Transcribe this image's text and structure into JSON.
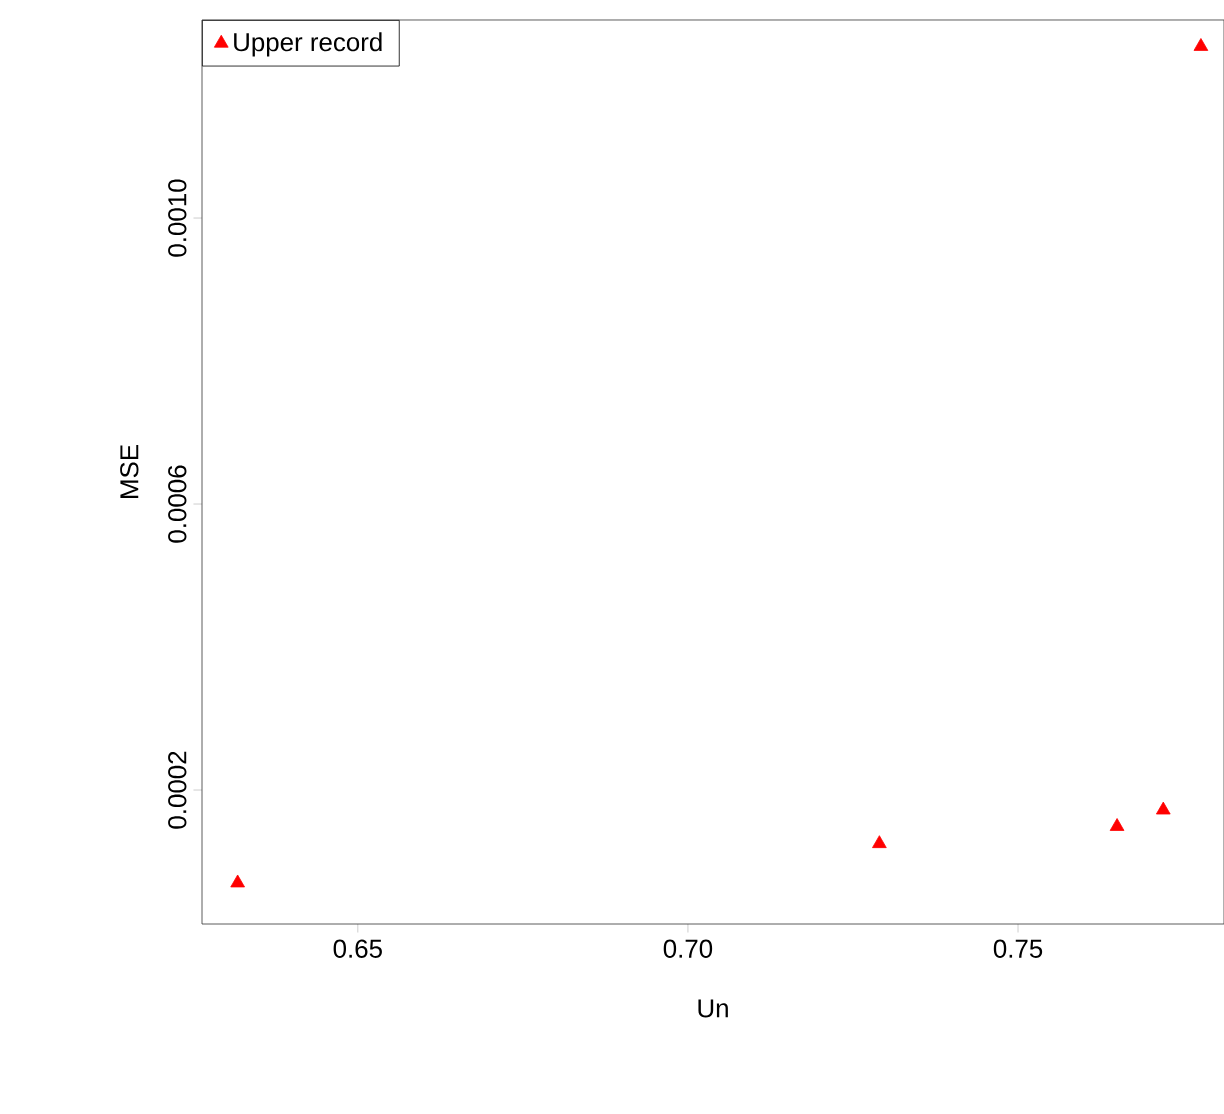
{
  "chart_data": {
    "type": "scatter",
    "xlabel": "Un",
    "ylabel": "MSE",
    "x": [
      0.6318,
      0.729,
      0.765,
      0.772,
      0.7777
    ],
    "series": [
      {
        "name": "Upper record",
        "color": "#ff0000",
        "values": [
          7e-05,
          0.000125,
          0.000149,
          0.000172,
          0.00124
        ]
      }
    ],
    "marker": "triangle",
    "legend": "top left",
    "xlim": [
      0.6264,
      0.7812
    ],
    "ylim": [
      1.26e-05,
      0.001277
    ],
    "xticks": [
      {
        "value": 0.65,
        "label": "0.65"
      },
      {
        "value": 0.7,
        "label": "0.70"
      },
      {
        "value": 0.75,
        "label": "0.75"
      }
    ],
    "yticks": [
      {
        "value": 0.0002,
        "label": "0.0002"
      },
      {
        "value": 0.0006,
        "label": "0.0006"
      },
      {
        "value": 0.001,
        "label": "0.0010"
      }
    ]
  }
}
